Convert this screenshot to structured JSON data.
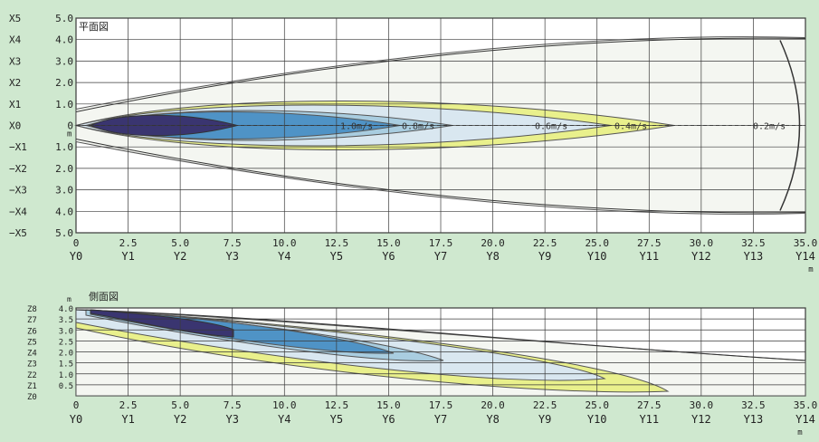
{
  "plan_view": {
    "title": "平面図",
    "y_tick_labels": [
      {
        "x": "X5",
        "v": "5.0"
      },
      {
        "x": "X4",
        "v": "4.0"
      },
      {
        "x": "X3",
        "v": "3.0"
      },
      {
        "x": "X2",
        "v": "2.0"
      },
      {
        "x": "X1",
        "v": "1.0"
      },
      {
        "x": "X0",
        "v": "0"
      },
      {
        "x": "−X1",
        "v": "1.0"
      },
      {
        "x": "−X2",
        "v": "2.0"
      },
      {
        "x": "−X3",
        "v": "3.0"
      },
      {
        "x": "−X4",
        "v": "4.0"
      },
      {
        "x": "−X5",
        "v": "5.0"
      }
    ],
    "y_unit": "m",
    "x_tick_values": [
      "0",
      "2.5",
      "5.0",
      "7.5",
      "10.0",
      "12.5",
      "15.0",
      "17.5",
      "20.0",
      "22.5",
      "25.0",
      "27.5",
      "30.0",
      "32.5",
      "35.0"
    ],
    "x_tick_names": [
      "Y0",
      "Y1",
      "Y2",
      "Y3",
      "Y4",
      "Y5",
      "Y6",
      "Y7",
      "Y8",
      "Y9",
      "Y10",
      "Y11",
      "Y12",
      "Y13",
      "Y14"
    ],
    "x_unit": "m",
    "contour_labels": [
      "1.0m/s",
      "0.8m/s",
      "0.6m/s",
      "0.4m/s",
      "0.2m/s"
    ]
  },
  "side_view": {
    "title": "側面図",
    "y_unit": "m",
    "y_tick_labels": [
      {
        "z": "Z8",
        "v": "4.0"
      },
      {
        "z": "Z7",
        "v": "3.5"
      },
      {
        "z": "Z6",
        "v": "3.0"
      },
      {
        "z": "Z5",
        "v": "2.5"
      },
      {
        "z": "Z4",
        "v": "2.0"
      },
      {
        "z": "Z3",
        "v": "1.5"
      },
      {
        "z": "Z2",
        "v": "1.0"
      },
      {
        "z": "Z1",
        "v": "0.5"
      },
      {
        "z": "Z0",
        "v": ""
      }
    ],
    "x_tick_values": [
      "0",
      "2.5",
      "5.0",
      "7.5",
      "10.0",
      "12.5",
      "15.0",
      "17.5",
      "20.0",
      "22.5",
      "25.0",
      "27.5",
      "30.0",
      "32.5",
      "35.0"
    ],
    "x_tick_names": [
      "Y0",
      "Y1",
      "Y2",
      "Y3",
      "Y4",
      "Y5",
      "Y6",
      "Y7",
      "Y8",
      "Y9",
      "Y10",
      "Y11",
      "Y12",
      "Y13",
      "Y14"
    ],
    "x_unit": "m"
  },
  "colors": {
    "background": "#cfe8cf",
    "grid": "#3a3a3a",
    "zone_0_2": "#f4f6f1",
    "zone_0_4": "#e9f08c",
    "zone_0_6": "#d9e7f0",
    "zone_0_8": "#a9cde0",
    "zone_1_0": "#4f93c6",
    "zone_core": "#3a3570"
  }
}
